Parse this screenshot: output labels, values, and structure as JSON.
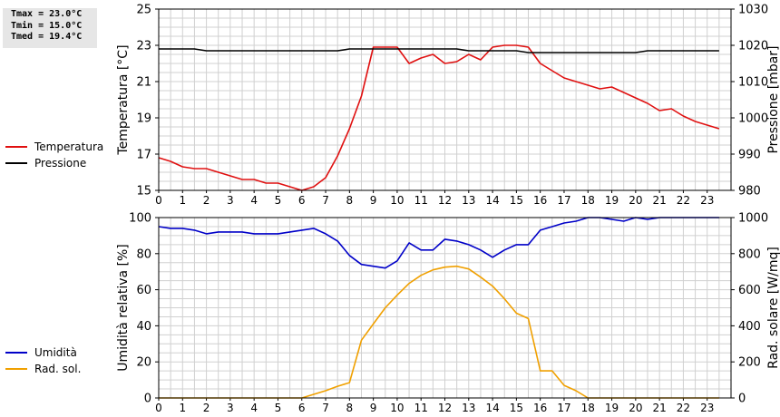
{
  "stats": {
    "tmax": "Tmax = 23.0°C",
    "tmin": "Tmin = 15.0°C",
    "tmed": "Tmed = 19.4°C"
  },
  "colors": {
    "temperature": "#e01010",
    "pressure": "#000000",
    "humidity": "#0000c8",
    "radiation": "#f0a000",
    "grid": "#d0d0d0"
  },
  "chart_data": [
    {
      "type": "line",
      "x_ticks": [
        "0",
        "1",
        "2",
        "3",
        "4",
        "5",
        "6",
        "7",
        "8",
        "9",
        "10",
        "11",
        "12",
        "13",
        "14",
        "15",
        "16",
        "17",
        "18",
        "19",
        "20",
        "21",
        "22",
        "23"
      ],
      "xlim": [
        0,
        24
      ],
      "ylabel": "Temperatura [°C]",
      "ylim": [
        15,
        25
      ],
      "yticks": [
        "15",
        "17",
        "19",
        "21",
        "23",
        "25"
      ],
      "y2label": "Pressione [mbar]",
      "y2lim": [
        980,
        1030
      ],
      "y2ticks": [
        "980",
        "990",
        "1000",
        "1010",
        "1020",
        "1030"
      ],
      "grid": true,
      "legend": "left",
      "series": [
        {
          "name": "Temperatura",
          "axis": "left",
          "x": [
            0,
            0.5,
            1,
            1.5,
            2,
            2.5,
            3,
            3.5,
            4,
            4.5,
            5,
            5.5,
            6,
            6.5,
            7,
            7.5,
            8,
            8.5,
            9,
            9.5,
            10,
            10.5,
            11,
            11.5,
            12,
            12.5,
            13,
            13.5,
            14,
            14.5,
            15,
            15.5,
            16,
            16.5,
            17,
            17.5,
            18,
            18.5,
            19,
            19.5,
            20,
            20.5,
            21,
            21.5,
            22,
            22.5,
            23,
            23.5
          ],
          "values": [
            16.8,
            16.6,
            16.3,
            16.2,
            16.2,
            16.0,
            15.8,
            15.6,
            15.6,
            15.4,
            15.4,
            15.2,
            15.0,
            15.2,
            15.7,
            16.9,
            18.4,
            20.2,
            22.9,
            22.9,
            22.9,
            22.0,
            22.3,
            22.5,
            22.0,
            22.1,
            22.5,
            22.2,
            22.9,
            23.0,
            23.0,
            22.9,
            22.0,
            21.6,
            21.2,
            21.0,
            20.8,
            20.6,
            20.7,
            20.4,
            20.1,
            19.8,
            19.4,
            19.5,
            19.1,
            18.8,
            18.6,
            18.4
          ]
        },
        {
          "name": "Pressione",
          "axis": "right",
          "x": [
            0,
            1,
            1.5,
            2,
            3,
            4,
            5,
            6,
            7,
            7.5,
            8,
            9,
            10,
            11,
            12,
            12.5,
            13,
            14,
            15,
            15.5,
            16,
            17,
            18,
            19,
            20,
            20.5,
            21,
            22,
            23,
            23.5
          ],
          "values": [
            1019,
            1019,
            1019,
            1018.5,
            1018.5,
            1018.5,
            1018.5,
            1018.5,
            1018.5,
            1018.5,
            1019,
            1019,
            1019,
            1019,
            1019,
            1019,
            1018.5,
            1018.5,
            1018.5,
            1018,
            1018,
            1018,
            1018,
            1018,
            1018,
            1018.5,
            1018.5,
            1018.5,
            1018.5,
            1018.5
          ]
        }
      ]
    },
    {
      "type": "line",
      "x_ticks": [
        "0",
        "1",
        "2",
        "3",
        "4",
        "5",
        "6",
        "7",
        "8",
        "9",
        "10",
        "11",
        "12",
        "13",
        "14",
        "15",
        "16",
        "17",
        "18",
        "19",
        "20",
        "21",
        "22",
        "23"
      ],
      "xlim": [
        0,
        24
      ],
      "ylabel": "Umidità relativa [%]",
      "ylim": [
        0,
        100
      ],
      "yticks": [
        "0",
        "20",
        "40",
        "60",
        "80",
        "100"
      ],
      "y2label": "Rad. solare [W/mq]",
      "y2lim": [
        0,
        1000
      ],
      "y2ticks": [
        "0",
        "200",
        "400",
        "600",
        "800",
        "1000"
      ],
      "grid": true,
      "legend": "left",
      "series": [
        {
          "name": "Umidità",
          "axis": "left",
          "x": [
            0,
            0.5,
            1,
            1.5,
            2,
            2.5,
            3,
            3.5,
            4,
            4.5,
            5,
            5.5,
            6,
            6.5,
            7,
            7.5,
            8,
            8.5,
            9,
            9.5,
            10,
            10.5,
            11,
            11.5,
            12,
            12.5,
            13,
            13.5,
            14,
            14.5,
            15,
            15.5,
            16,
            16.5,
            17,
            17.5,
            18,
            18.5,
            19,
            19.5,
            20,
            20.5,
            21,
            21.5,
            22,
            22.5,
            23,
            23.5
          ],
          "values": [
            95,
            94,
            94,
            93,
            91,
            92,
            92,
            92,
            91,
            91,
            91,
            92,
            93,
            94,
            91,
            87,
            79,
            74,
            73,
            72,
            76,
            86,
            82,
            82,
            88,
            87,
            85,
            82,
            78,
            82,
            85,
            85,
            93,
            95,
            97,
            98,
            100,
            100,
            99,
            98,
            100,
            99,
            100,
            100,
            100,
            100,
            100,
            100
          ]
        },
        {
          "name": "Rad. sol.",
          "axis": "right",
          "x": [
            0,
            0.5,
            1,
            1.5,
            2,
            2.5,
            3,
            3.5,
            4,
            4.5,
            5,
            5.5,
            6,
            6.5,
            7,
            7.5,
            8,
            8.5,
            9,
            9.5,
            10,
            10.5,
            11,
            11.5,
            12,
            12.5,
            13,
            13.5,
            14,
            14.5,
            15,
            15.5,
            16,
            16.5,
            17,
            17.5,
            18,
            18.5,
            19,
            19.5,
            20,
            20.5,
            21,
            21.5,
            22,
            22.5,
            23,
            23.5
          ],
          "values": [
            0,
            0,
            0,
            0,
            0,
            0,
            0,
            0,
            0,
            0,
            0,
            0,
            0,
            20,
            40,
            65,
            85,
            320,
            410,
            500,
            570,
            635,
            680,
            710,
            725,
            730,
            715,
            670,
            620,
            550,
            470,
            440,
            150,
            150,
            70,
            40,
            0,
            0,
            0,
            0,
            0,
            0,
            0,
            0,
            0,
            0,
            0,
            0
          ]
        }
      ]
    }
  ]
}
